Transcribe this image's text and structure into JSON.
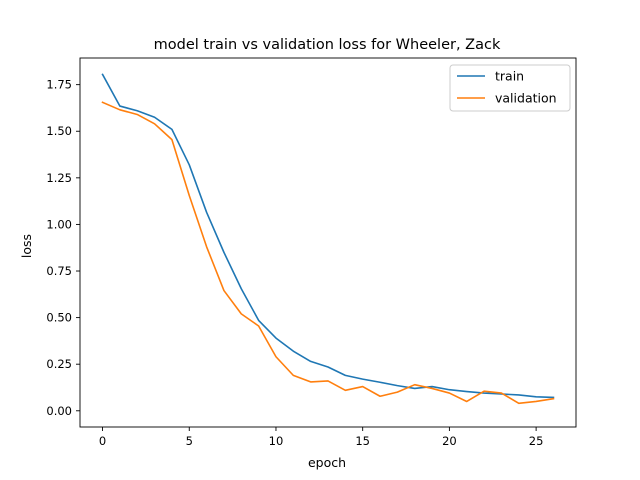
{
  "chart_data": {
    "type": "line",
    "title": "model train vs validation loss for Wheeler, Zack",
    "xlabel": "epoch",
    "ylabel": "loss",
    "xlim": [
      -1.3,
      27.3
    ],
    "ylim": [
      -0.087,
      1.893
    ],
    "xticks": [
      0,
      5,
      10,
      15,
      20,
      25
    ],
    "yticks": [
      0.0,
      0.25,
      0.5,
      0.75,
      1.0,
      1.25,
      1.5,
      1.75
    ],
    "xtick_labels": [
      "0",
      "5",
      "10",
      "15",
      "20",
      "25"
    ],
    "ytick_labels": [
      "0.00",
      "0.25",
      "0.50",
      "0.75",
      "1.00",
      "1.25",
      "1.50",
      "1.75"
    ],
    "legend_position": "top-right",
    "grid": false,
    "x": [
      0,
      1,
      2,
      3,
      4,
      5,
      6,
      7,
      8,
      9,
      10,
      11,
      12,
      13,
      14,
      15,
      16,
      17,
      18,
      19,
      20,
      21,
      22,
      23,
      24,
      25,
      26
    ],
    "series": [
      {
        "name": "train",
        "color": "#1f77b4",
        "values": [
          1.805,
          1.635,
          1.61,
          1.575,
          1.51,
          1.32,
          1.065,
          0.85,
          0.655,
          0.485,
          0.39,
          0.32,
          0.265,
          0.235,
          0.19,
          0.17,
          0.153,
          0.135,
          0.12,
          0.13,
          0.113,
          0.103,
          0.095,
          0.09,
          0.085,
          0.075,
          0.072
        ]
      },
      {
        "name": "validation",
        "color": "#ff7f0e",
        "values": [
          1.655,
          1.615,
          1.59,
          1.54,
          1.455,
          1.155,
          0.88,
          0.645,
          0.52,
          0.455,
          0.29,
          0.19,
          0.155,
          0.16,
          0.11,
          0.13,
          0.078,
          0.1,
          0.14,
          0.12,
          0.095,
          0.05,
          0.105,
          0.095,
          0.04,
          0.05,
          0.065
        ]
      }
    ]
  }
}
